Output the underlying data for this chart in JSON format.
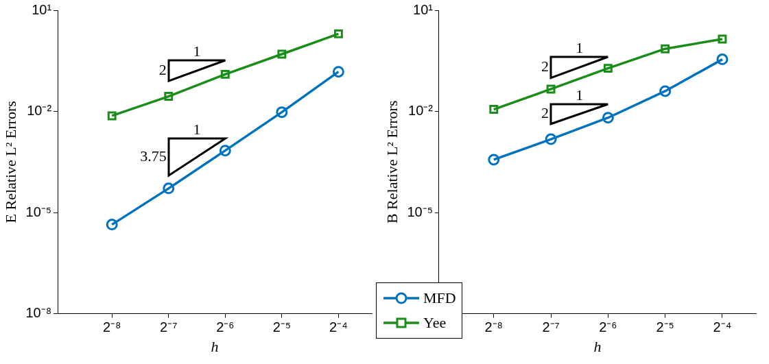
{
  "chart_data": [
    {
      "type": "line",
      "xlabel": "h",
      "ylabel": "E Relative L² Errors",
      "log": "xy",
      "x": [
        0.00390625,
        0.0078125,
        0.015625,
        0.03125,
        0.0625
      ],
      "xlim": [
        0.00201,
        0.094
      ],
      "xticks": [
        {
          "value": 0.00390625,
          "label": "2⁻⁸"
        },
        {
          "value": 0.0078125,
          "label": "2⁻⁷"
        },
        {
          "value": 0.015625,
          "label": "2⁻⁶"
        },
        {
          "value": 0.03125,
          "label": "2⁻⁵"
        },
        {
          "value": 0.0625,
          "label": "2⁻⁴"
        }
      ],
      "ylim": [
        1e-08,
        10
      ],
      "yticks": [
        {
          "value": 1e-08,
          "label": "10⁻⁸"
        },
        {
          "value": 1e-05,
          "label": "10⁻⁵"
        },
        {
          "value": 0.01,
          "label": "10⁻²"
        },
        {
          "value": 10,
          "label": "10¹"
        }
      ],
      "grid": false,
      "legend": "bottom right",
      "series": [
        {
          "name": "MFD",
          "color": "#0072bd",
          "marker": "circle",
          "values": [
            4.4e-06,
            5.2e-05,
            0.00069,
            0.0095,
            0.15
          ]
        },
        {
          "name": "Yee",
          "color": "#1a8c1a",
          "marker": "square",
          "values": [
            0.0074,
            0.028,
            0.126,
            0.5,
            2.0
          ]
        }
      ],
      "annotations": [
        "1",
        "2",
        "1",
        "3.75"
      ]
    },
    {
      "type": "line",
      "xlabel": "h",
      "ylabel": "B Relative L² Errors",
      "log": "xy",
      "x": [
        0.00390625,
        0.0078125,
        0.015625,
        0.03125,
        0.0625
      ],
      "xlim": [
        0.00201,
        0.094
      ],
      "xticks": [
        {
          "value": 0.00390625,
          "label": "2⁻⁸"
        },
        {
          "value": 0.0078125,
          "label": "2⁻⁷"
        },
        {
          "value": 0.015625,
          "label": "2⁻⁶"
        },
        {
          "value": 0.03125,
          "label": "2⁻⁵"
        },
        {
          "value": 0.0625,
          "label": "2⁻⁴"
        }
      ],
      "ylim": [
        1e-08,
        10
      ],
      "yticks": [
        {
          "value": 1e-08,
          "label": null
        },
        {
          "value": 1e-05,
          "label": "10⁻⁵"
        },
        {
          "value": 0.01,
          "label": "10⁻²"
        },
        {
          "value": 10,
          "label": "10¹"
        }
      ],
      "grid": false,
      "series": [
        {
          "color": "#0072bd",
          "marker": "circle",
          "values": [
            0.00037,
            0.0015,
            0.0065,
            0.04,
            0.35
          ]
        },
        {
          "color": "#1a8c1a",
          "marker": "square",
          "values": [
            0.0115,
            0.046,
            0.19,
            0.72,
            1.4
          ]
        }
      ],
      "annotations": [
        "1",
        "2",
        "1",
        "2"
      ]
    }
  ]
}
